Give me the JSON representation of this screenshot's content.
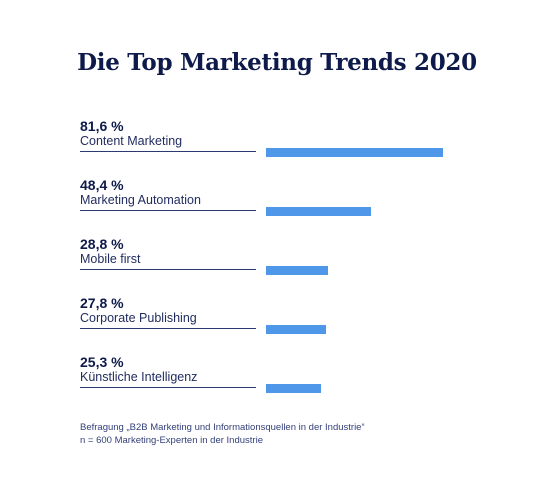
{
  "chart_data": {
    "type": "bar",
    "title": "Die Top Marketing Trends 2020",
    "xlabel": "",
    "ylabel": "",
    "categories": [
      "Content Marketing",
      "Marketing Automation",
      "Mobile first",
      "Corporate Publishing",
      "Künstliche Intelligenz"
    ],
    "values": [
      81.6,
      48.4,
      28.8,
      27.8,
      25.3
    ],
    "value_labels": [
      "81,6 %",
      "48,4 %",
      "28,8 %",
      "27,8 %",
      "25,3 %"
    ],
    "xlim": [
      0,
      100
    ],
    "grid": false,
    "legend": "none",
    "bar_color": "#4f97e8",
    "text_color": "#0e1a4a"
  },
  "footnote": {
    "line1": "Befragung „B2B Marketing und Informationsquellen in der Industrie“",
    "line2": "n = 600 Marketing-Experten in der Industrie"
  }
}
